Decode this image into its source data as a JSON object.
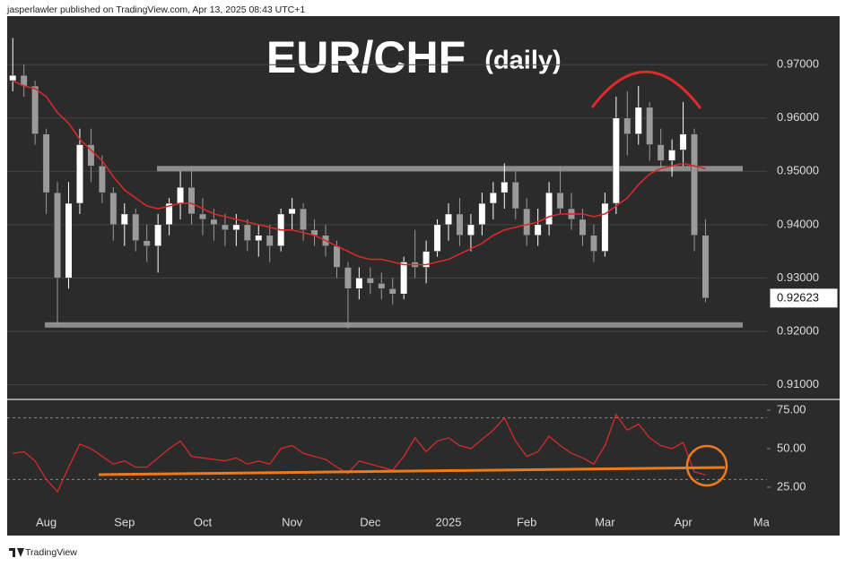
{
  "header": "jasperlawler published on TradingView.com, Apr 13, 2025 08:43 UTC+1",
  "footer": "TradingView",
  "chart_data": [
    {
      "type": "candlestick",
      "title": "EUR/CHF",
      "subtitle": "(daily)",
      "categories": [
        null,
        null,
        null,
        "Aug",
        null,
        null,
        null,
        null,
        null,
        null,
        "Sep",
        null,
        null,
        null,
        null,
        null,
        null,
        "Oct",
        null,
        null,
        null,
        null,
        null,
        null,
        null,
        "Nov",
        null,
        null,
        null,
        null,
        null,
        null,
        "Dec",
        null,
        null,
        null,
        null,
        null,
        null,
        "2025",
        null,
        null,
        null,
        null,
        null,
        null,
        "Feb",
        null,
        null,
        null,
        null,
        null,
        null,
        "Mar",
        null,
        null,
        null,
        null,
        null,
        null,
        "Apr",
        null,
        null,
        null,
        null,
        null,
        null,
        "Ma"
      ],
      "open": [
        0.967,
        0.968,
        0.966,
        0.957,
        0.946,
        0.93,
        0.944,
        0.955,
        0.951,
        0.946,
        0.94,
        0.942,
        0.937,
        0.936,
        0.94,
        0.944,
        0.947,
        0.942,
        0.941,
        0.94,
        0.939,
        0.94,
        0.937,
        0.938,
        0.936,
        0.942,
        0.943,
        0.939,
        0.938,
        0.936,
        0.932,
        0.928,
        0.93,
        0.929,
        0.928,
        0.927,
        0.933,
        0.932,
        0.935,
        0.94,
        0.942,
        0.938,
        0.94,
        0.944,
        0.946,
        0.948,
        0.943,
        0.938,
        0.94,
        0.946,
        0.943,
        0.941,
        0.938,
        0.935,
        0.944,
        0.96,
        0.957,
        0.962,
        0.955,
        0.952,
        0.954,
        0.957,
        0.938,
        null,
        null,
        null,
        null,
        null
      ],
      "high": [
        0.975,
        0.97,
        0.967,
        0.958,
        0.948,
        0.948,
        0.958,
        0.958,
        0.953,
        0.947,
        0.944,
        0.943,
        0.94,
        0.942,
        0.945,
        0.95,
        0.951,
        0.945,
        0.943,
        0.942,
        0.942,
        0.941,
        0.94,
        0.94,
        0.943,
        0.945,
        0.944,
        0.941,
        0.94,
        0.937,
        0.933,
        0.932,
        0.932,
        0.931,
        0.93,
        0.934,
        0.939,
        0.937,
        0.941,
        0.944,
        0.945,
        0.942,
        0.946,
        0.948,
        0.9515,
        0.95,
        0.945,
        0.943,
        0.948,
        0.951,
        0.946,
        0.943,
        0.94,
        0.946,
        0.964,
        0.965,
        0.966,
        0.963,
        0.958,
        0.956,
        0.963,
        0.958,
        0.941,
        null,
        null,
        null,
        null,
        null
      ],
      "low": [
        0.965,
        0.964,
        0.955,
        0.942,
        0.921,
        0.928,
        0.942,
        0.948,
        0.944,
        0.937,
        0.936,
        0.935,
        0.933,
        0.931,
        0.938,
        0.941,
        0.94,
        0.938,
        0.937,
        0.936,
        0.936,
        0.935,
        0.934,
        0.933,
        0.935,
        0.939,
        0.937,
        0.936,
        0.934,
        0.93,
        0.9205,
        0.926,
        0.927,
        0.926,
        0.925,
        0.926,
        0.93,
        0.929,
        0.934,
        0.937,
        0.936,
        0.935,
        0.938,
        0.941,
        0.943,
        0.941,
        0.936,
        0.936,
        0.938,
        0.942,
        0.939,
        0.936,
        0.933,
        0.934,
        0.942,
        0.953,
        0.955,
        0.952,
        0.95,
        0.949,
        0.951,
        0.935,
        0.9255,
        null,
        null,
        null,
        null,
        null
      ],
      "close": [
        0.968,
        0.966,
        0.957,
        0.946,
        0.93,
        0.944,
        0.955,
        0.951,
        0.946,
        0.94,
        0.942,
        0.937,
        0.936,
        0.94,
        0.944,
        0.947,
        0.942,
        0.941,
        0.94,
        0.939,
        0.94,
        0.937,
        0.938,
        0.936,
        0.942,
        0.943,
        0.939,
        0.938,
        0.936,
        0.932,
        0.928,
        0.93,
        0.929,
        0.928,
        0.927,
        0.933,
        0.932,
        0.935,
        0.94,
        0.942,
        0.938,
        0.94,
        0.944,
        0.946,
        0.948,
        0.943,
        0.938,
        0.94,
        0.946,
        0.943,
        0.941,
        0.938,
        0.935,
        0.944,
        0.96,
        0.957,
        0.962,
        0.955,
        0.952,
        0.954,
        0.957,
        0.938,
        0.92623,
        null,
        null,
        null,
        null,
        null
      ],
      "up_color": "#ffffff",
      "down_color": "#9a9a9a",
      "ma": {
        "color": "#d62a2a",
        "values": [
          0.967,
          0.966,
          0.9655,
          0.964,
          0.961,
          0.959,
          0.956,
          0.954,
          0.952,
          0.949,
          0.9465,
          0.945,
          0.9435,
          0.943,
          0.9435,
          0.944,
          0.944,
          0.943,
          0.942,
          0.9415,
          0.941,
          0.9405,
          0.94,
          0.9395,
          0.939,
          0.939,
          0.9385,
          0.938,
          0.937,
          0.936,
          0.935,
          0.934,
          0.9335,
          0.9335,
          0.933,
          0.9325,
          0.9325,
          0.9325,
          0.933,
          0.9335,
          0.9345,
          0.9355,
          0.9365,
          0.938,
          0.939,
          0.9395,
          0.94,
          0.9405,
          0.9415,
          0.942,
          0.942,
          0.942,
          0.9415,
          0.942,
          0.9435,
          0.945,
          0.9475,
          0.9495,
          0.9505,
          0.951,
          0.9515,
          0.951,
          0.9505,
          null,
          null,
          null,
          null,
          null
        ]
      },
      "levels": [
        0.9505,
        0.9212
      ],
      "level_color": "#8c8c8c",
      "last_price": 0.92623,
      "ylim": [
        0.9074,
        0.9791
      ],
      "yticks": [
        {
          "value": 0.91,
          "label": "0.91000"
        },
        {
          "value": 0.92,
          "label": "0.92000"
        },
        {
          "value": 0.93,
          "label": "0.93000"
        },
        {
          "value": 0.94,
          "label": "0.94000"
        },
        {
          "value": 0.95,
          "label": "0.95000"
        },
        {
          "value": 0.96,
          "label": "0.96000"
        },
        {
          "value": 0.97,
          "label": "0.97000"
        }
      ],
      "grid": true
    },
    {
      "type": "line",
      "color": "#d62a2a",
      "values": [
        47,
        48,
        42,
        30,
        22,
        38,
        53,
        50,
        45,
        40,
        42,
        38,
        38,
        44,
        50,
        55,
        45,
        44,
        43,
        42,
        44,
        40,
        42,
        40,
        50,
        52,
        47,
        45,
        43,
        38,
        34,
        42,
        40,
        38,
        36,
        45,
        57,
        48,
        55,
        57,
        52,
        50,
        56,
        62,
        70,
        55,
        45,
        48,
        58,
        52,
        47,
        44,
        40,
        52,
        72,
        62,
        66,
        57,
        52,
        50,
        54,
        35,
        33,
        null,
        null,
        null,
        null,
        null
      ],
      "bands": [
        70,
        30
      ],
      "ylim": [
        11.6,
        80.8
      ],
      "yticks": [
        {
          "value": 25,
          "label": "25.00"
        },
        {
          "value": 50,
          "label": "50.00"
        },
        {
          "value": 75,
          "label": "75.00"
        }
      ]
    }
  ]
}
